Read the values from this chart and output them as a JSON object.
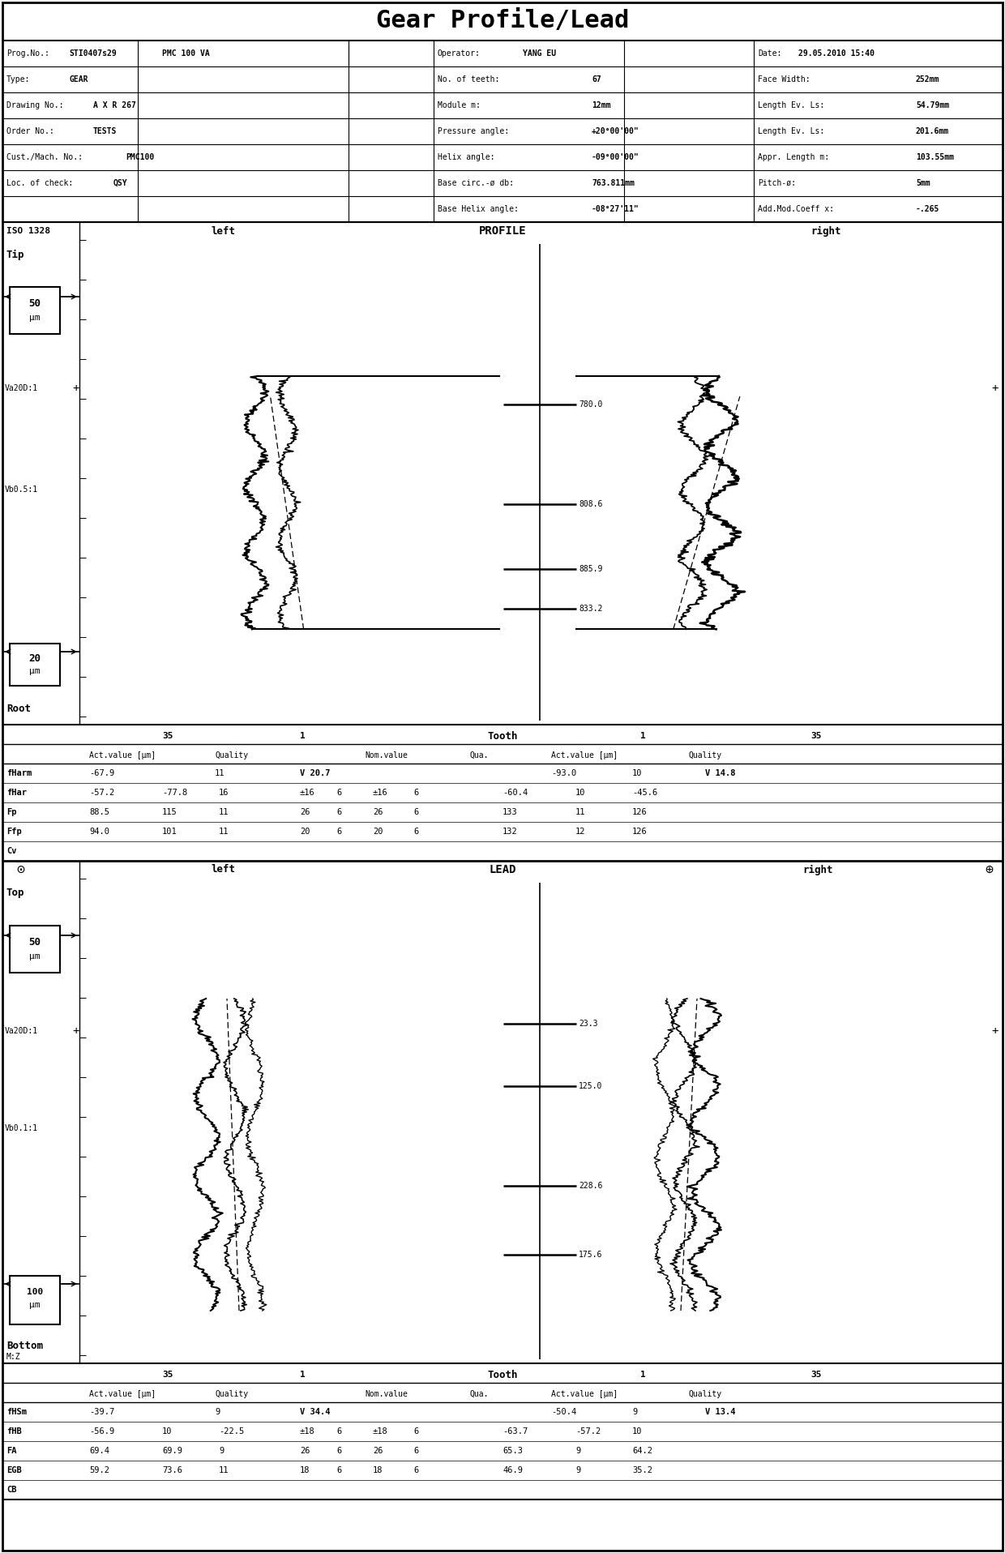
{
  "title": "Gear Profile/Lead",
  "bg_color": "#ffffff",
  "title_fontsize": 20,
  "header_bg": "#d0d0d0",
  "profile_center_labels": [
    "833.2",
    "885.9",
    "808.6",
    "780.0"
  ],
  "lead_center_labels": [
    "175.6",
    "228.6",
    "125.0",
    "23.3"
  ],
  "profile_rows": [
    [
      "fHarm",
      "-67.9",
      "11",
      "V 20.7",
      "",
      "",
      "-93.0",
      "10",
      "V 14.8"
    ],
    [
      "fHar",
      "-57.2",
      "-77.8",
      "16",
      "±16",
      "6",
      "±16",
      "6",
      "-60.4",
      "10",
      "-45.6"
    ],
    [
      "Fp",
      "88.5",
      "115",
      "11",
      "26",
      "6",
      "26",
      "6",
      "133",
      "11",
      "126"
    ],
    [
      "Ffp",
      "94.0",
      "101",
      "11",
      "20",
      "6",
      "20",
      "6",
      "132",
      "12",
      "126"
    ],
    [
      "Cv",
      "",
      "",
      "",
      "",
      "",
      "",
      "",
      "",
      "",
      ""
    ]
  ],
  "lead_rows": [
    [
      "fHSm",
      "-39.7",
      "9",
      "V 34.4",
      "",
      "",
      "",
      "",
      "-50.4",
      "9",
      "V 13.4"
    ],
    [
      "fHB",
      "-56.9",
      "10",
      "-22.5",
      "±18",
      "6",
      "±18",
      "6",
      "-63.7",
      "-57.2",
      "10"
    ],
    [
      "FA",
      "69.4",
      "69.9",
      "9",
      "26",
      "6",
      "26",
      "6",
      "65.3",
      "9",
      "64.2"
    ],
    [
      "EGB",
      "59.2",
      "73.6",
      "11",
      "18",
      "6",
      "18",
      "6",
      "46.9",
      "9",
      "35.2"
    ],
    [
      "CB",
      "",
      "",
      "",
      "",
      "",
      "",
      "",
      "",
      "",
      ""
    ]
  ]
}
